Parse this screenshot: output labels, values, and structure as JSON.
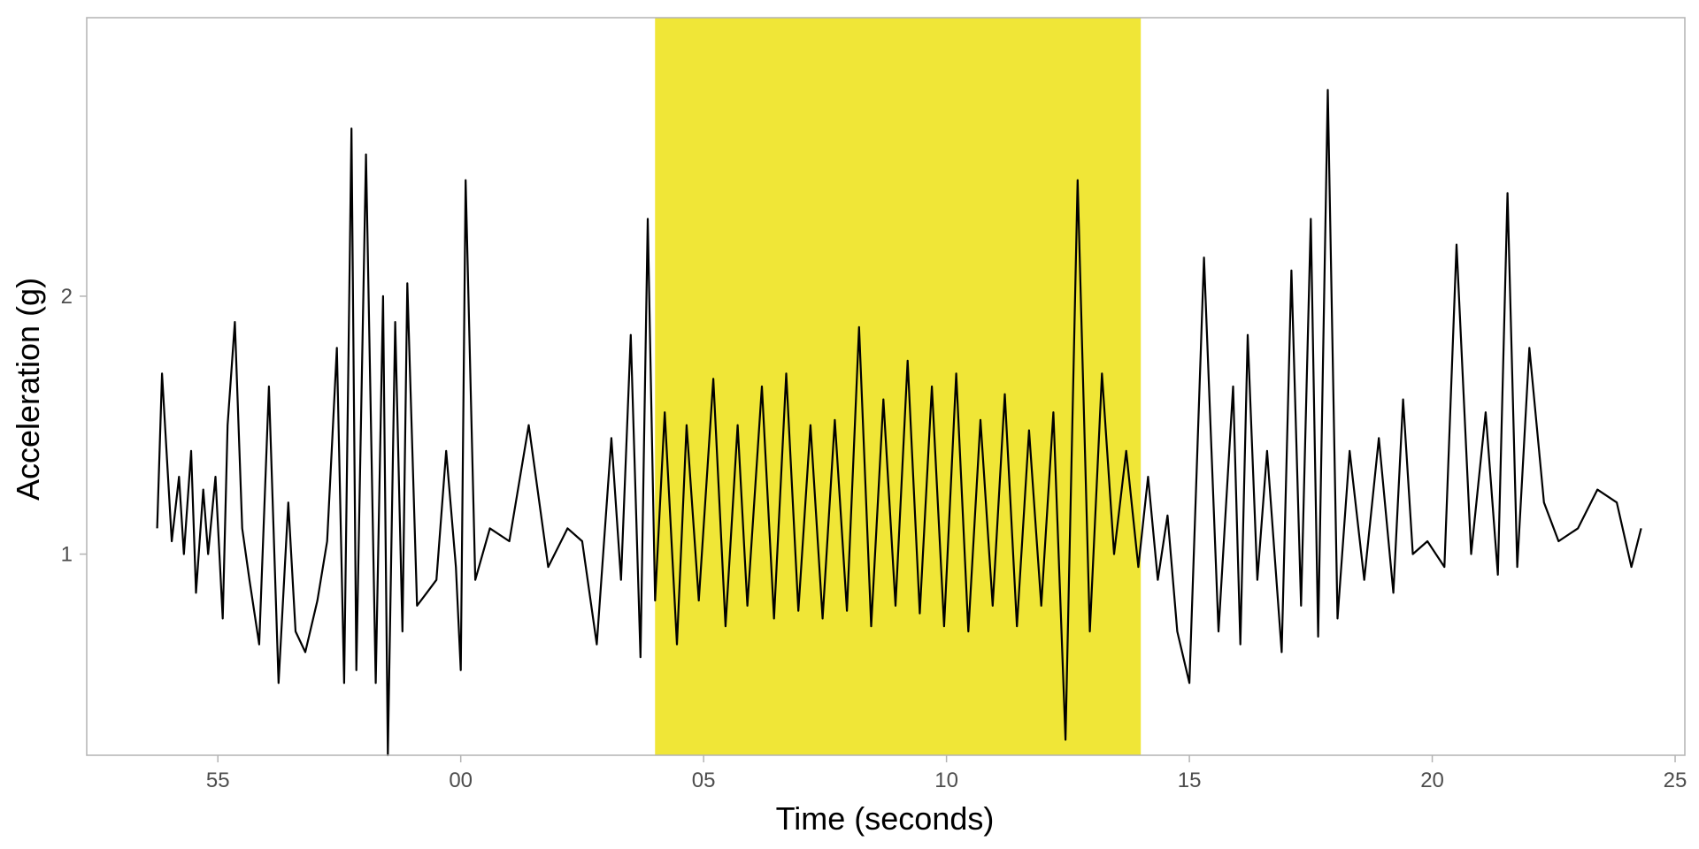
{
  "chart_data": {
    "type": "line",
    "title": "",
    "xlabel": "Time (seconds)",
    "ylabel": "Acceleration (g)",
    "x_unit": "seconds (clock, mm:ss)",
    "x_tick_labels": [
      "55",
      "00",
      "05",
      "10",
      "15",
      "20",
      "25"
    ],
    "x_ticks": [
      55,
      60,
      65,
      70,
      75,
      80,
      85
    ],
    "y_ticks": [
      1,
      2
    ],
    "y_tick_labels": [
      "1",
      "2"
    ],
    "xlim": [
      52.3,
      85.2
    ],
    "ylim": [
      0.22,
      3.08
    ],
    "grid": false,
    "legend": "none",
    "highlight": {
      "x_start": 64.0,
      "x_end": 74.0,
      "color": "#f0e637"
    },
    "line_color": "#000000",
    "series": [
      {
        "x": [
          53.75,
          53.85,
          54.05,
          54.2,
          54.3,
          54.45,
          54.55,
          54.7,
          54.8,
          54.95,
          55.1,
          55.2,
          55.35,
          55.5,
          55.65,
          55.85,
          56.05,
          56.25,
          56.45,
          56.6,
          56.8,
          57.05,
          57.25,
          57.45,
          57.6,
          57.75,
          57.85,
          58.05,
          58.25,
          58.4,
          58.5,
          58.65,
          58.8,
          58.9,
          59.1,
          59.3,
          59.5,
          59.7,
          59.9,
          60.0,
          60.1,
          60.3,
          60.6,
          61.0,
          61.4,
          61.8,
          62.2,
          62.5,
          62.8,
          63.1,
          63.3,
          63.5,
          63.7,
          63.85,
          64.0,
          64.2,
          64.45,
          64.65,
          64.9,
          65.2,
          65.45,
          65.7,
          65.9,
          66.2,
          66.45,
          66.7,
          66.95,
          67.2,
          67.45,
          67.7,
          67.95,
          68.2,
          68.45,
          68.7,
          68.95,
          69.2,
          69.45,
          69.7,
          69.95,
          70.2,
          70.45,
          70.7,
          70.95,
          71.2,
          71.45,
          71.7,
          71.95,
          72.2,
          72.45,
          72.7,
          72.95,
          73.2,
          73.45,
          73.7,
          73.95,
          74.15,
          74.35,
          74.55,
          74.75,
          75.0,
          75.3,
          75.6,
          75.9,
          76.05,
          76.2,
          76.4,
          76.6,
          76.9,
          77.1,
          77.3,
          77.5,
          77.65,
          77.85,
          78.05,
          78.3,
          78.6,
          78.9,
          79.2,
          79.4,
          79.6,
          79.9,
          80.25,
          80.5,
          80.8,
          81.1,
          81.35,
          81.55,
          81.75,
          82.0,
          82.3,
          82.6,
          83.0,
          83.4,
          83.8,
          84.1,
          84.3
        ],
        "y": [
          1.1,
          1.7,
          1.05,
          1.3,
          1.0,
          1.4,
          0.85,
          1.25,
          1.0,
          1.3,
          0.75,
          1.5,
          1.9,
          1.1,
          0.9,
          0.65,
          1.65,
          0.5,
          1.2,
          0.7,
          0.62,
          0.82,
          1.05,
          1.8,
          0.5,
          2.65,
          0.55,
          2.55,
          0.5,
          2.0,
          0.22,
          1.9,
          0.7,
          2.05,
          0.8,
          0.85,
          0.9,
          1.4,
          0.95,
          0.55,
          2.45,
          0.9,
          1.1,
          1.05,
          1.5,
          0.95,
          1.1,
          1.05,
          0.65,
          1.45,
          0.9,
          1.85,
          0.6,
          2.3,
          0.82,
          1.55,
          0.65,
          1.5,
          0.82,
          1.68,
          0.72,
          1.5,
          0.8,
          1.65,
          0.75,
          1.7,
          0.78,
          1.5,
          0.75,
          1.52,
          0.78,
          1.88,
          0.72,
          1.6,
          0.8,
          1.75,
          0.77,
          1.65,
          0.72,
          1.7,
          0.7,
          1.52,
          0.8,
          1.62,
          0.72,
          1.48,
          0.8,
          1.55,
          0.28,
          2.45,
          0.7,
          1.7,
          1.0,
          1.4,
          0.95,
          1.3,
          0.9,
          1.15,
          0.7,
          0.5,
          2.15,
          0.7,
          1.65,
          0.65,
          1.85,
          0.9,
          1.4,
          0.62,
          2.1,
          0.8,
          2.3,
          0.68,
          2.8,
          0.75,
          1.4,
          0.9,
          1.45,
          0.85,
          1.6,
          1.0,
          1.05,
          0.95,
          2.2,
          1.0,
          1.55,
          0.92,
          2.4,
          0.95,
          1.8,
          1.2,
          1.05,
          1.1,
          1.25,
          1.2,
          0.95,
          1.1
        ]
      }
    ]
  }
}
